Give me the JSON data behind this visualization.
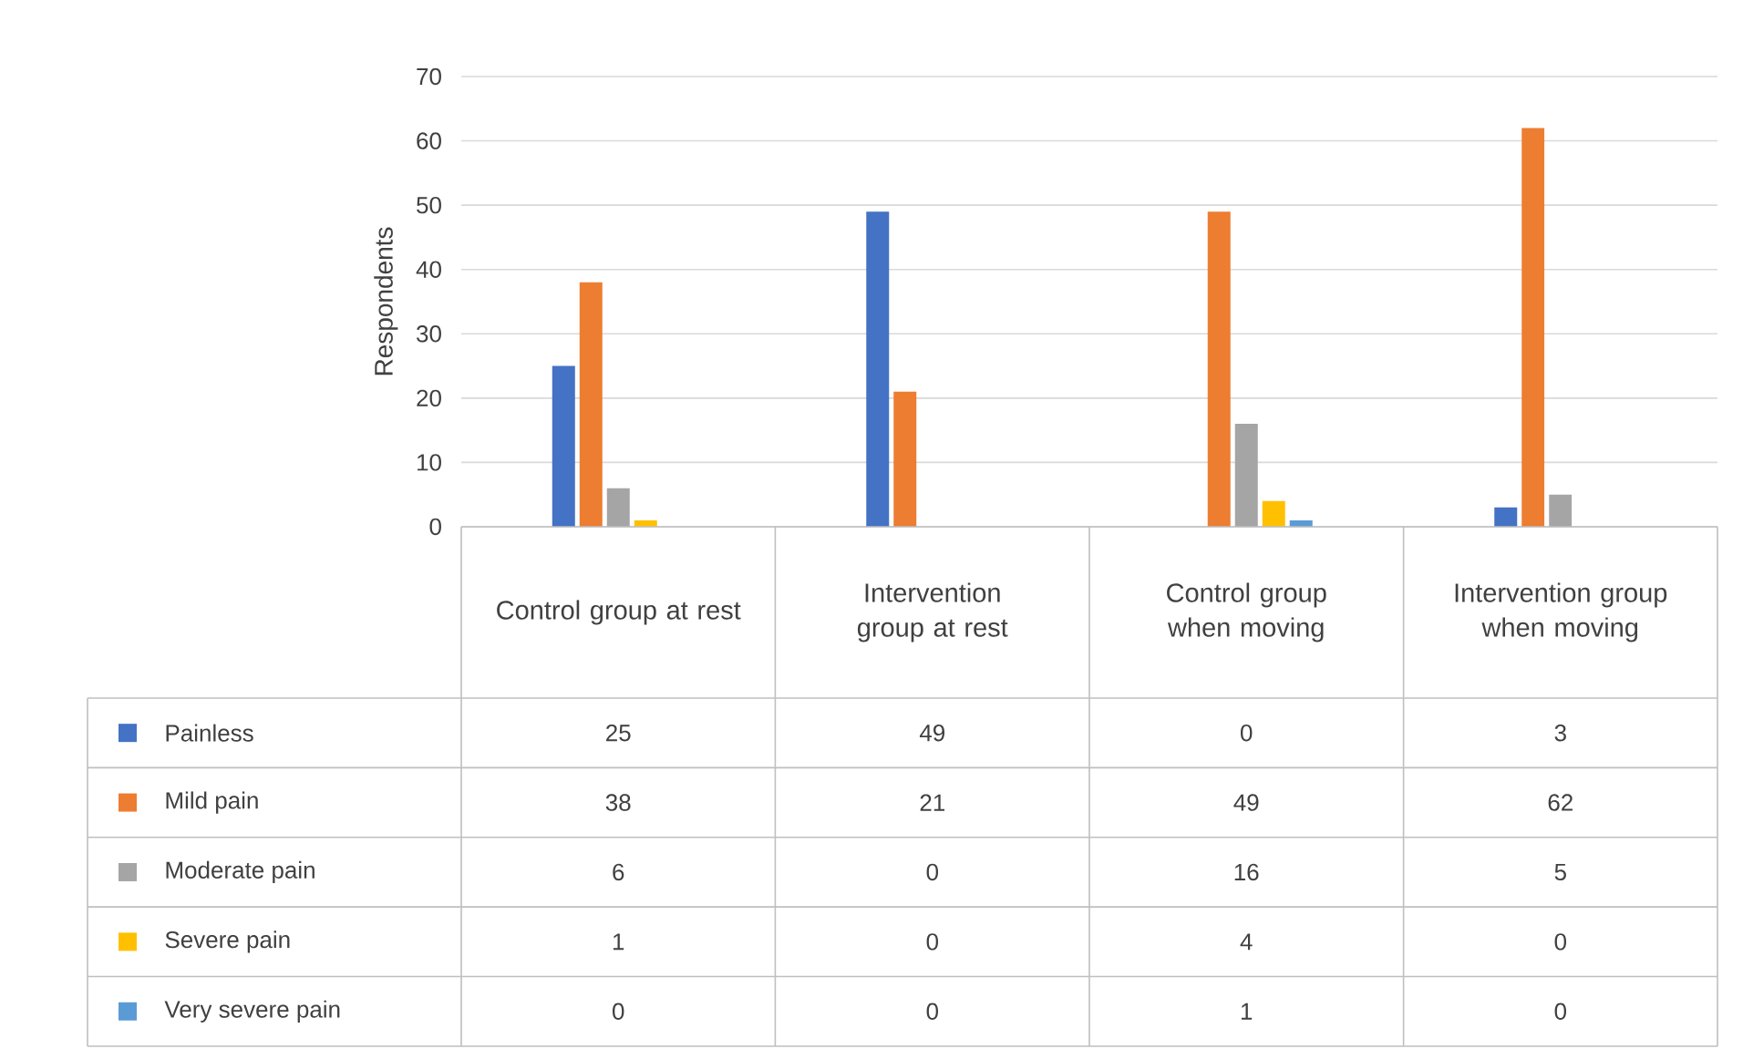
{
  "chart_data": {
    "type": "bar",
    "ylabel": "Respondents",
    "categories": [
      "Control group at rest",
      "Intervention group at rest",
      "Control group when moving",
      "Intervention group when moving"
    ],
    "series": [
      {
        "name": "Painless",
        "color": "#4472c4",
        "values": [
          25,
          49,
          0,
          3
        ]
      },
      {
        "name": "Mild pain",
        "color": "#ed7d31",
        "values": [
          38,
          21,
          49,
          62
        ]
      },
      {
        "name": "Moderate pain",
        "color": "#a5a5a5",
        "values": [
          6,
          0,
          16,
          5
        ]
      },
      {
        "name": "Severe pain",
        "color": "#ffc000",
        "values": [
          1,
          0,
          4,
          0
        ]
      },
      {
        "name": "Very severe pain",
        "color": "#5b9bd5",
        "values": [
          0,
          0,
          1,
          0
        ]
      }
    ],
    "ylim": [
      0,
      70
    ],
    "yticks": [
      0,
      10,
      20,
      30,
      40,
      50,
      60,
      70
    ],
    "grid": "y",
    "legend": "bottom",
    "data_labels": true
  }
}
